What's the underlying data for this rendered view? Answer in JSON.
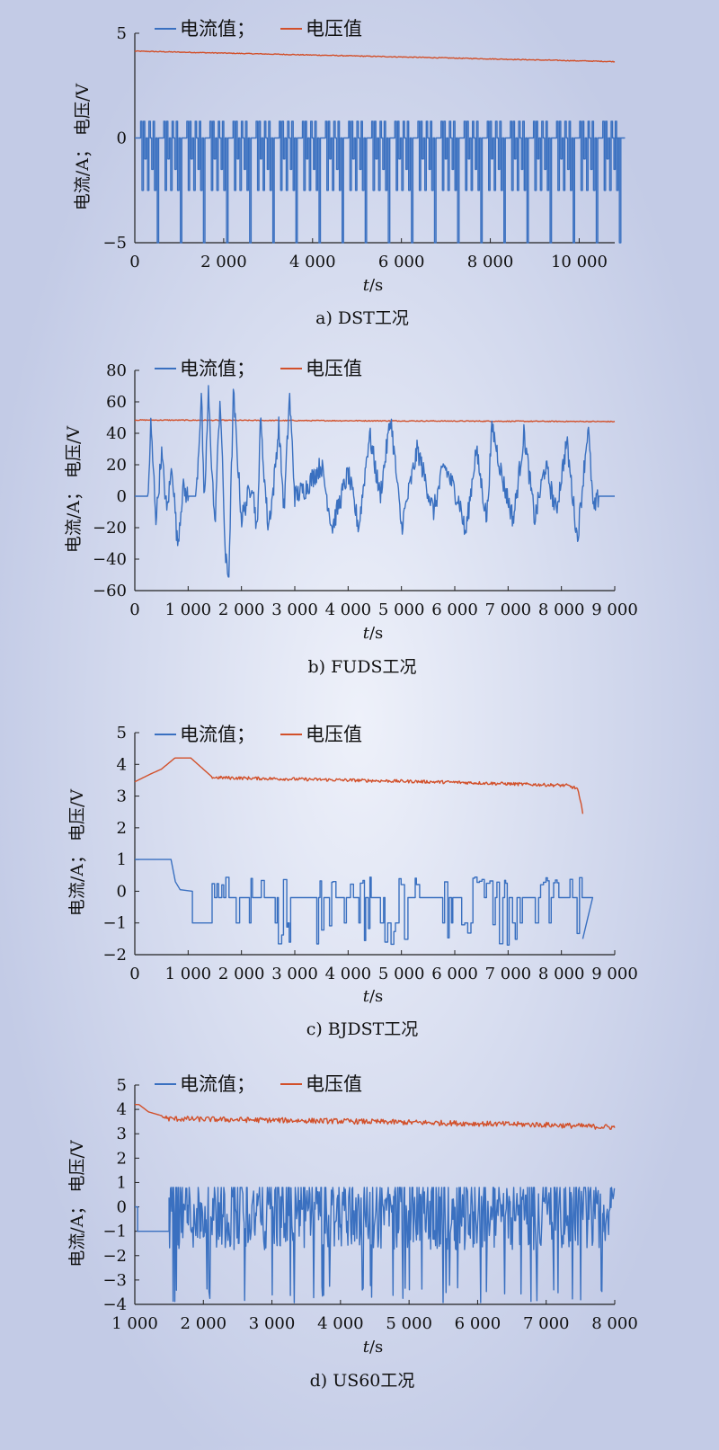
{
  "chart_data": [
    {
      "type": "line",
      "caption": "a) DST工况",
      "xlabel_italic": "t",
      "xlabel_rest": "/s",
      "ylabel": "电流/A；  电压/V",
      "legend": [
        {
          "name": "电流值；",
          "color": "#3a70c0"
        },
        {
          "name": "电压值",
          "color": "#d2502a"
        }
      ],
      "xlim": [
        0,
        10800
      ],
      "ylim": [
        -5,
        5
      ],
      "xticks": [
        0,
        2000,
        4000,
        6000,
        8000,
        10000
      ],
      "xtick_labels": [
        "0",
        "2 000",
        "4 000",
        "6 000",
        "8 000",
        "10 000"
      ],
      "yticks": [
        -5,
        0,
        5
      ],
      "ytick_labels": [
        "−5",
        "0",
        "5"
      ],
      "series": [
        {
          "name": "电压值",
          "color": "#d2502a",
          "kind": "drift",
          "start": 4.15,
          "end": 3.65,
          "noise": 0.04
        },
        {
          "name": "电流值",
          "color": "#3a70c0",
          "kind": "dst",
          "t0": 100,
          "t1": 10800,
          "period": 520,
          "hi": 0.8,
          "lo": -5
        }
      ]
    },
    {
      "type": "line",
      "caption": "b) FUDS工况",
      "xlabel_italic": "t",
      "xlabel_rest": "/s",
      "ylabel": "电流/A；  电压/V",
      "legend": [
        {
          "name": "电流值；",
          "color": "#3a70c0"
        },
        {
          "name": "电压值",
          "color": "#d2502a"
        }
      ],
      "xlim": [
        0,
        9000
      ],
      "ylim": [
        -60,
        80
      ],
      "xticks": [
        0,
        1000,
        2000,
        3000,
        4000,
        5000,
        6000,
        7000,
        8000,
        9000
      ],
      "xtick_labels": [
        "0",
        "1 000",
        "2 000",
        "3 000",
        "4 000",
        "5 000",
        "6 000",
        "7 000",
        "8 000",
        "9 000"
      ],
      "yticks": [
        -60,
        -40,
        -20,
        0,
        20,
        40,
        60,
        80
      ],
      "ytick_labels": [
        "−60",
        "−40",
        "−20",
        "0",
        "20",
        "40",
        "60",
        "80"
      ],
      "series": [
        {
          "name": "电压值",
          "color": "#d2502a",
          "kind": "drift",
          "start": 48.5,
          "end": 47.5,
          "noise": 0.6
        },
        {
          "name": "电流值",
          "color": "#3a70c0",
          "kind": "fuds",
          "t0": 250,
          "t1": 8700,
          "base": 0,
          "keypoints": [
            [
              0,
              0
            ],
            [
              250,
              0
            ],
            [
              300,
              45
            ],
            [
              400,
              -15
            ],
            [
              500,
              28
            ],
            [
              600,
              -10
            ],
            [
              700,
              20
            ],
            [
              800,
              -32
            ],
            [
              900,
              5
            ],
            [
              1000,
              0
            ],
            [
              1150,
              0
            ],
            [
              1250,
              65
            ],
            [
              1300,
              -10
            ],
            [
              1380,
              65
            ],
            [
              1500,
              -20
            ],
            [
              1600,
              65
            ],
            [
              1700,
              -40
            ],
            [
              1760,
              -52
            ],
            [
              1850,
              65
            ],
            [
              2000,
              -15
            ],
            [
              2200,
              10
            ],
            [
              2300,
              -25
            ],
            [
              2350,
              50
            ],
            [
              2500,
              -20
            ],
            [
              2600,
              5
            ],
            [
              2700,
              45
            ],
            [
              2800,
              -10
            ],
            [
              2900,
              65
            ],
            [
              3000,
              0
            ],
            [
              3200,
              5
            ],
            [
              3500,
              20
            ],
            [
              3700,
              -20
            ],
            [
              4000,
              15
            ],
            [
              4200,
              -20
            ],
            [
              4400,
              40
            ],
            [
              4600,
              0
            ],
            [
              4800,
              50
            ],
            [
              5000,
              -20
            ],
            [
              5300,
              30
            ],
            [
              5600,
              -10
            ],
            [
              5800,
              20
            ],
            [
              6100,
              -5
            ],
            [
              6200,
              -25
            ],
            [
              6400,
              30
            ],
            [
              6600,
              -15
            ],
            [
              6700,
              45
            ],
            [
              6900,
              10
            ],
            [
              7100,
              -15
            ],
            [
              7300,
              40
            ],
            [
              7500,
              -15
            ],
            [
              7700,
              20
            ],
            [
              7900,
              -10
            ],
            [
              8100,
              35
            ],
            [
              8300,
              -28
            ],
            [
              8500,
              45
            ],
            [
              8600,
              -10
            ],
            [
              8700,
              0
            ],
            [
              9000,
              0
            ]
          ]
        }
      ]
    },
    {
      "type": "line",
      "caption": "c) BJDST工况",
      "xlabel_italic": "t",
      "xlabel_rest": "/s",
      "ylabel": "电流/A；  电压/V",
      "legend": [
        {
          "name": "电流值；",
          "color": "#3a70c0"
        },
        {
          "name": "电压值",
          "color": "#d2502a"
        }
      ],
      "xlim": [
        0,
        9000
      ],
      "ylim": [
        -2,
        5
      ],
      "xticks": [
        0,
        1000,
        2000,
        3000,
        4000,
        5000,
        6000,
        7000,
        8000,
        9000
      ],
      "xtick_labels": [
        "0",
        "1 000",
        "2 000",
        "3 000",
        "4 000",
        "5 000",
        "6 000",
        "7 000",
        "8 000",
        "9 000"
      ],
      "yticks": [
        -2,
        -1,
        0,
        1,
        2,
        3,
        4,
        5
      ],
      "ytick_labels": [
        "−2",
        "−1",
        "0",
        "1",
        "2",
        "3",
        "4",
        "5"
      ],
      "series": [
        {
          "name": "电压值",
          "color": "#d2502a",
          "kind": "bjv",
          "keypoints": [
            [
              0,
              3.45
            ],
            [
              300,
              3.7
            ],
            [
              500,
              3.85
            ],
            [
              750,
              4.2
            ],
            [
              1050,
              4.2
            ],
            [
              1450,
              3.6
            ],
            [
              3000,
              3.55
            ],
            [
              6000,
              3.45
            ],
            [
              8100,
              3.35
            ],
            [
              8300,
              3.25
            ],
            [
              8400,
              2.5
            ]
          ]
        },
        {
          "name": "电流值",
          "color": "#3a70c0",
          "kind": "bjdst",
          "t0": 1450,
          "t1": 8400,
          "hi": 0.45,
          "lo": -1.7,
          "mid": -0.2,
          "prefix": [
            [
              0,
              1.0
            ],
            [
              680,
              1.0
            ],
            [
              760,
              0.3
            ],
            [
              850,
              0.05
            ],
            [
              1080,
              0.0
            ],
            [
              1080,
              -1.0
            ],
            [
              1450,
              -1.0
            ]
          ]
        }
      ]
    },
    {
      "type": "line",
      "caption": "d) US60工况",
      "xlabel_italic": "t",
      "xlabel_rest": "/s",
      "ylabel": "电流/A；  电压/V",
      "legend": [
        {
          "name": "电流值；",
          "color": "#3a70c0"
        },
        {
          "name": "电压值",
          "color": "#d2502a"
        }
      ],
      "xlim": [
        1000,
        8000
      ],
      "ylim": [
        -4,
        5
      ],
      "xticks": [
        1000,
        2000,
        3000,
        4000,
        5000,
        6000,
        7000,
        8000
      ],
      "xtick_labels": [
        "1 000",
        "2 000",
        "3 000",
        "4 000",
        "5 000",
        "6 000",
        "7 000",
        "8 000"
      ],
      "yticks": [
        -4,
        -3,
        -2,
        -1,
        0,
        1,
        2,
        3,
        4,
        5
      ],
      "ytick_labels": [
        "−4",
        "−3",
        "−2",
        "−1",
        "0",
        "1",
        "2",
        "3",
        "4",
        "5"
      ],
      "series": [
        {
          "name": "电压值",
          "color": "#d2502a",
          "kind": "usv",
          "keypoints": [
            [
              1000,
              4.2
            ],
            [
              1060,
              4.2
            ],
            [
              1200,
              3.9
            ],
            [
              1500,
              3.65
            ],
            [
              4000,
              3.55
            ],
            [
              7000,
              3.4
            ],
            [
              8000,
              3.3
            ]
          ]
        },
        {
          "name": "电流值",
          "color": "#3a70c0",
          "kind": "us60",
          "t0": 1500,
          "t1": 8000,
          "hi": 0.8,
          "lo": -4,
          "prefix": [
            [
              1000,
              0.0
            ],
            [
              1040,
              0.0
            ],
            [
              1040,
              -1.0
            ],
            [
              1500,
              -1.0
            ]
          ]
        }
      ]
    }
  ]
}
